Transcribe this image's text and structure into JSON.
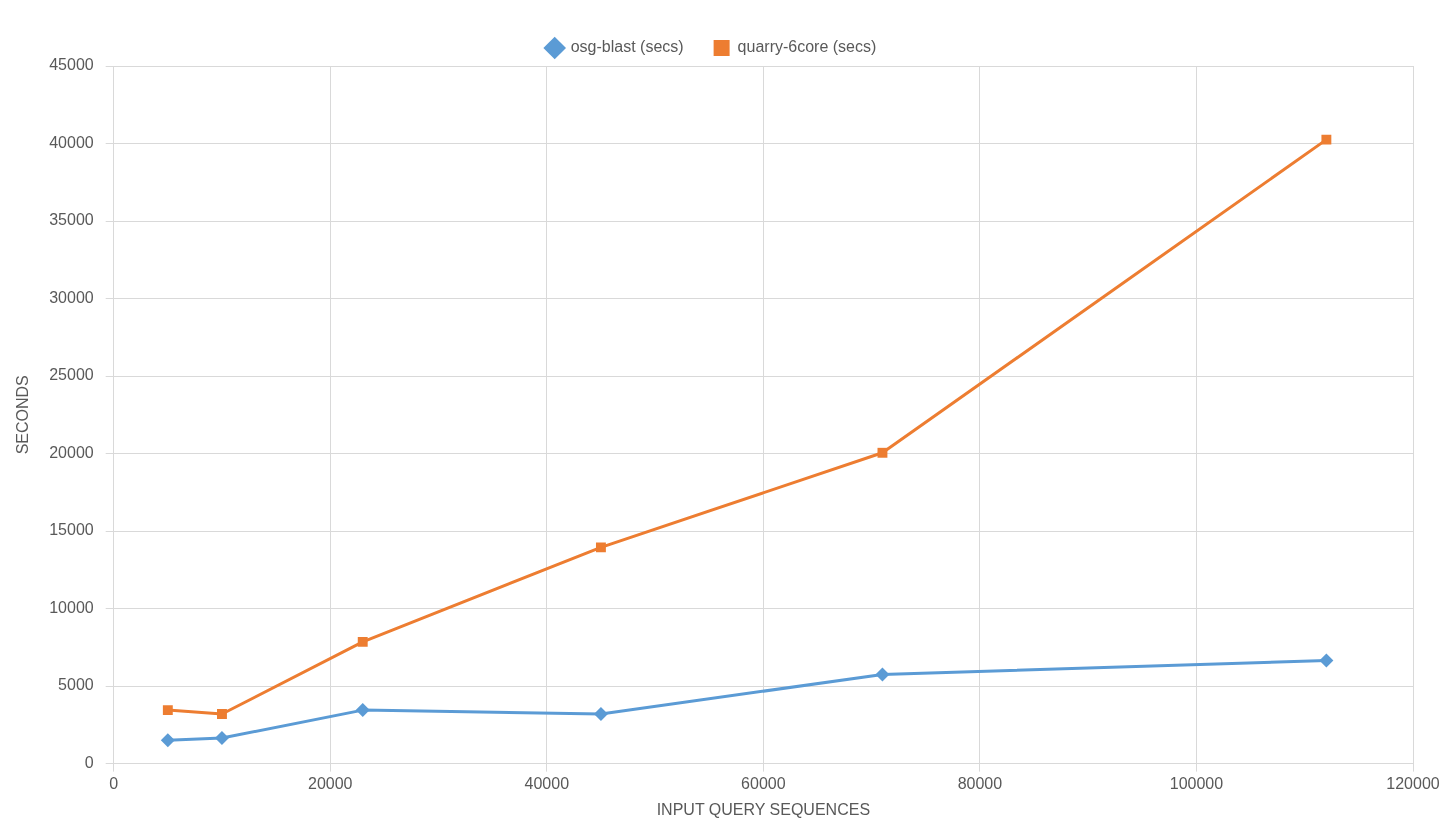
{
  "chart_data": {
    "type": "line",
    "xlabel": "INPUT QUERY SEQUENCES",
    "ylabel": "SECONDS",
    "xlim": [
      0,
      120000
    ],
    "xticks": [
      0,
      20000,
      40000,
      60000,
      80000,
      100000,
      120000
    ],
    "ylim": [
      0,
      45000
    ],
    "yticks": [
      0,
      5000,
      10000,
      15000,
      20000,
      25000,
      30000,
      35000,
      40000,
      45000
    ],
    "grid": true,
    "legend": "top",
    "line_style": "solid",
    "series": [
      {
        "name": "osg-blast (secs)",
        "color": "#5b9bd5",
        "marker": "diamond",
        "x": [
          5000,
          10000,
          23000,
          45000,
          71000,
          112000
        ],
        "values": [
          1500,
          1650,
          3450,
          3200,
          5750,
          6650
        ]
      },
      {
        "name": "quarry-6core (secs)",
        "color": "#ed7d31",
        "marker": "square",
        "x": [
          5000,
          10000,
          23000,
          45000,
          71000,
          112000
        ],
        "values": [
          3450,
          3200,
          7850,
          13950,
          20050,
          40250
        ]
      }
    ]
  }
}
